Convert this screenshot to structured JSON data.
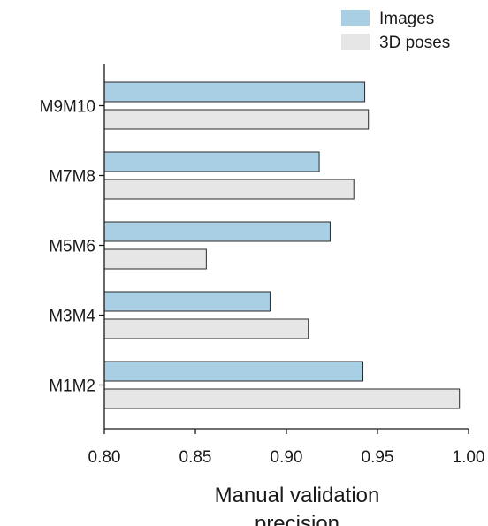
{
  "chart_data": {
    "type": "bar",
    "orientation": "horizontal",
    "categories": [
      "M9M10",
      "M7M8",
      "M5M6",
      "M3M4",
      "M1M2"
    ],
    "series": [
      {
        "name": "Images",
        "color": "#a8cfe3",
        "values": [
          0.943,
          0.918,
          0.924,
          0.891,
          0.942
        ]
      },
      {
        "name": "3D poses",
        "color": "#e6e6e6",
        "values": [
          0.945,
          0.937,
          0.856,
          0.912,
          0.995
        ]
      }
    ],
    "xlim": [
      0.8,
      1.0
    ],
    "xticks": [
      "0.80",
      "0.85",
      "0.90",
      "0.95",
      "1.00"
    ],
    "xlabel_lines": [
      "Manual validation",
      "precision"
    ],
    "ylabel": "",
    "legend_position": "top-right",
    "grid": false
  }
}
